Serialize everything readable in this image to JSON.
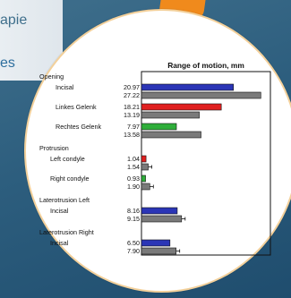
{
  "side_text": [
    "apie",
    "es"
  ],
  "chart_data": {
    "type": "bar",
    "title": "Range of motion, mm",
    "groups": [
      {
        "label": "Opening",
        "items": [
          {
            "label": "Incisal",
            "values": [
              20.97,
              27.22
            ]
          },
          {
            "label": "Linkes Gelenk",
            "values": [
              18.21,
              13.19
            ]
          },
          {
            "label": "Rechtes Gelenk",
            "values": [
              7.97,
              13.58
            ]
          }
        ]
      },
      {
        "label": "Protrusion",
        "items": [
          {
            "label": "Left condyle",
            "values": [
              1.04,
              1.54
            ]
          },
          {
            "label": "Right condyle",
            "values": [
              0.93,
              1.9
            ]
          }
        ]
      },
      {
        "label": "Laterotrusion Left",
        "items": [
          {
            "label": "Incisal",
            "values": [
              8.16,
              9.15
            ]
          }
        ]
      },
      {
        "label": "Laterotrusion Right",
        "items": [
          {
            "label": "Incisal",
            "values": [
              6.5,
              7.9
            ]
          }
        ]
      }
    ],
    "xlim": [
      0,
      29
    ],
    "colors": {
      "Opening": [
        "#2b35b6",
        "#7a7a7a"
      ],
      "Linkes Gelenk": [
        "#e02020",
        "#7a7a7a"
      ],
      "Rechtes Gelenk": [
        "#2fae3a",
        "#7a7a7a"
      ],
      "Left condyle": [
        "#e02020",
        "#7a7a7a"
      ],
      "Right condyle": [
        "#2fae3a",
        "#7a7a7a"
      ],
      "Laterotrusion Left": [
        "#2b35b6",
        "#7a7a7a"
      ],
      "Laterotrusion Right": [
        "#2b35b6",
        "#7a7a7a"
      ]
    }
  }
}
